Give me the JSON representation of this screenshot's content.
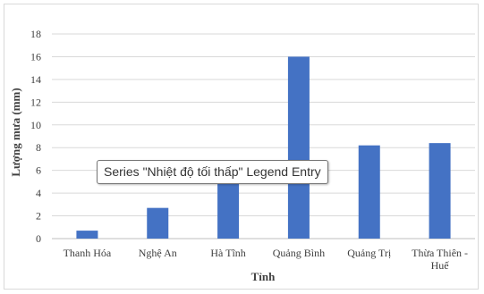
{
  "chart_data": {
    "type": "bar",
    "categories": [
      "Thanh Hóa",
      "Nghệ An",
      "Hà Tĩnh",
      "Quảng Bình",
      "Quảng Trị",
      "Thừa Thiên - Huế"
    ],
    "category_lines": [
      [
        "Thanh Hóa"
      ],
      [
        "Nghệ An"
      ],
      [
        "Hà Tĩnh"
      ],
      [
        "Quảng Bình"
      ],
      [
        "Quảng Trị"
      ],
      [
        "Thừa Thiên -",
        "Huế"
      ]
    ],
    "values": [
      0.7,
      2.7,
      5.0,
      16.0,
      8.2,
      8.4
    ],
    "xlabel": "Tỉnh",
    "ylabel": "Lượng mưa (mm)",
    "ylim": [
      0,
      18
    ],
    "yticks": [
      0,
      2,
      4,
      6,
      8,
      10,
      12,
      14,
      16,
      18
    ],
    "grid": true,
    "bar_color": "#4472c4",
    "grid_color": "#d9d9d9"
  },
  "tooltip": {
    "text": "Series \"Nhiệt độ tối thấp\" Legend Entry"
  }
}
